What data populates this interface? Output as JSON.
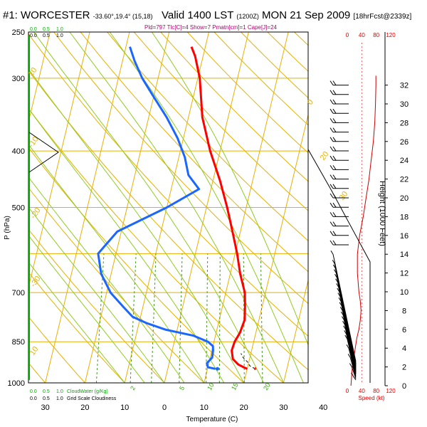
{
  "header": {
    "station": "#1: WORCESTER",
    "coords": "-33.60°,19.4° (15,18)",
    "valid": "Valid 1400 LST",
    "utc": "(1200Z)",
    "date": "MON 21 Sep 2009",
    "run": "[18hrFcst@2339z]",
    "indices": "Pld=797 Tlc[C]=4 Show=7 Pmatn[cm]=1 Cape[J]=24"
  },
  "colors": {
    "isotherm": "#e8b000",
    "mixing_ratio": "#33aa00",
    "temperature": "#ff0000",
    "dewpoint": "#1a66ff",
    "wind_barb": "#000000",
    "cloud_scale": "#00aa00",
    "speed_axis": "#dd0000",
    "subtitle": "#b0006e"
  },
  "chart_data": {
    "type": "line",
    "xlabel": "Temperature (C)",
    "ylabel": "P (hPa)",
    "x_ticks": [
      "30",
      "20",
      "10",
      "0",
      "10",
      "20",
      "30",
      "40"
    ],
    "x_tick_values": [
      -30,
      -20,
      -10,
      0,
      10,
      20,
      30,
      40
    ],
    "pressure_ticks": [
      250,
      300,
      400,
      500,
      700,
      850,
      1000
    ],
    "isotherm_labels": [
      "10",
      "0",
      "-10",
      "-20",
      "-30",
      "10",
      "20",
      "30"
    ],
    "mixing_ratio_labels": [
      "2",
      "5",
      "10",
      "15",
      "20"
    ],
    "temperature": {
      "p": [
        946,
        940,
        930,
        910,
        880,
        850,
        820,
        780,
        740,
        700,
        650,
        600,
        550,
        500,
        450,
        400,
        350,
        300,
        275,
        265
      ],
      "t": [
        20.0,
        19.0,
        17.5,
        15.8,
        15.0,
        15.2,
        16.0,
        16.4,
        15.7,
        14.8,
        12.5,
        10.5,
        8.0,
        5.2,
        1.8,
        -2.5,
        -6.5,
        -9.5,
        -12.0,
        -13.5
      ]
    },
    "dewpoint": {
      "p": [
        946,
        940,
        925,
        905,
        880,
        865,
        850,
        830,
        810,
        790,
        770,
        740,
        700,
        650,
        600,
        550,
        500,
        465,
        440,
        410,
        380,
        350,
        320,
        300,
        280,
        265
      ],
      "td": [
        12.0,
        10.0,
        9.5,
        10.5,
        10.3,
        10.0,
        8.5,
        4.5,
        -3.0,
        -8.0,
        -12.0,
        -15.0,
        -19.0,
        -22.5,
        -24.5,
        -21.0,
        -10.0,
        -3.0,
        -6.5,
        -8.5,
        -11.5,
        -15.5,
        -20.5,
        -24.0,
        -27.0,
        -29.0
      ]
    },
    "parcel": {
      "p": [
        946,
        935,
        920,
        905,
        890
      ],
      "t": [
        22.0,
        20.5,
        19.6,
        18.3,
        17.5
      ]
    },
    "surface_markers": [
      {
        "name": "temperature",
        "p": 946,
        "t": 22.0
      },
      {
        "name": "dewpoint",
        "p": 946,
        "t": 12.5
      }
    ],
    "cloud_cover_scale": {
      "top_labels": [
        "0.0",
        "0.5",
        "1.0"
      ],
      "bottom_labels": [
        "0.0",
        "0.5",
        "1.0"
      ],
      "top_caption": "Cloud cover",
      "bottom_top_caption": "CloudWater (g/Kg)",
      "bottom_caption": "Grid Scale Cloudiness"
    },
    "height_axis": {
      "label": "Height (1000 Feet)",
      "ticks": [
        0,
        2,
        4,
        6,
        8,
        10,
        12,
        14,
        16,
        18,
        20,
        22,
        24,
        26,
        28,
        30,
        32
      ]
    },
    "wind_speed_axis": {
      "label": "Speed (kt)",
      "ticks": [
        0,
        40,
        80,
        120
      ],
      "profile": {
        "height_kft": [
          0,
          1,
          2,
          3,
          4,
          5,
          6,
          7,
          8,
          9,
          10,
          12,
          14,
          16,
          18,
          20,
          22,
          24,
          26,
          28,
          30,
          32,
          33
        ],
        "speed": [
          10,
          12,
          14,
          18,
          22,
          26,
          32,
          36,
          38,
          36,
          32,
          28,
          28,
          34,
          44,
          52,
          60,
          66,
          72,
          76,
          78,
          79,
          79
        ]
      }
    },
    "wind_barb_heights_kft": [
      1,
      2,
      3,
      4,
      5,
      5.5,
      6,
      6.5,
      7,
      7.5,
      8,
      8.5,
      9,
      9.5,
      10,
      10.5,
      11,
      11.5,
      12,
      12.5,
      13,
      14,
      15,
      16,
      17,
      18,
      19,
      20,
      21,
      22,
      23,
      24,
      25,
      26,
      27,
      28,
      29,
      30,
      31,
      32
    ]
  }
}
